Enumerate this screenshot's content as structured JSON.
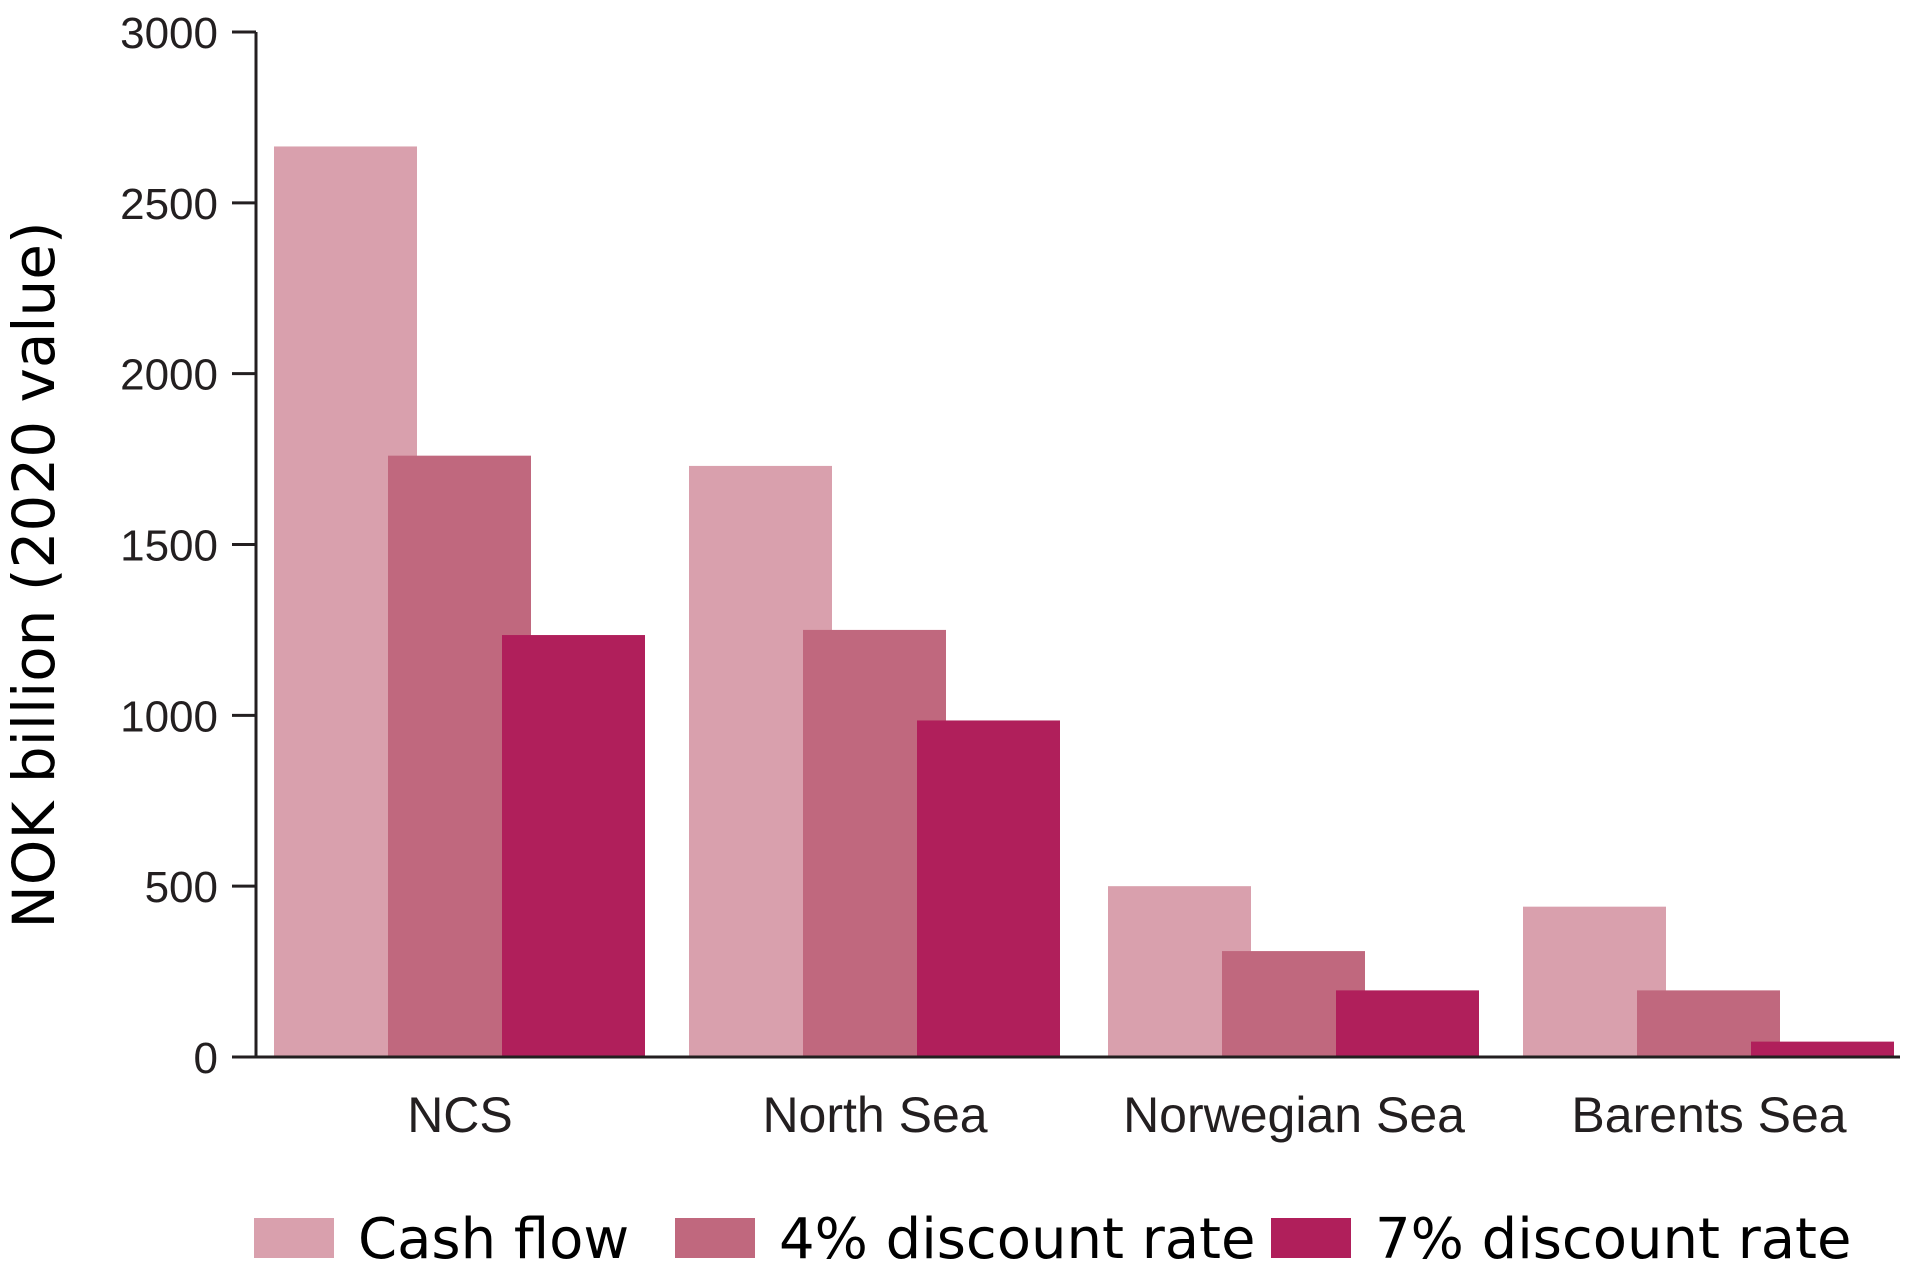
{
  "chart_data": {
    "type": "bar",
    "title": "",
    "xlabel": "",
    "ylabel": "NOK billion (2020 value)",
    "ylim": [
      0,
      3000
    ],
    "yticks": [
      0,
      500,
      1000,
      1500,
      2000,
      2500,
      3000
    ],
    "grid": false,
    "legend_position": "bottom",
    "categories": [
      "NCS",
      "North Sea",
      "Norwegian Sea",
      "Barents Sea"
    ],
    "series": [
      {
        "name": "Cash flow",
        "color": "#d9a0ad",
        "values": [
          2665,
          1730,
          500,
          440
        ]
      },
      {
        "name": "4% discount rate",
        "color": "#c0687e",
        "values": [
          1760,
          1250,
          310,
          195
        ]
      },
      {
        "name": "7% discount rate",
        "color": "#b01f5b",
        "values": [
          1235,
          985,
          195,
          45
        ]
      }
    ]
  }
}
